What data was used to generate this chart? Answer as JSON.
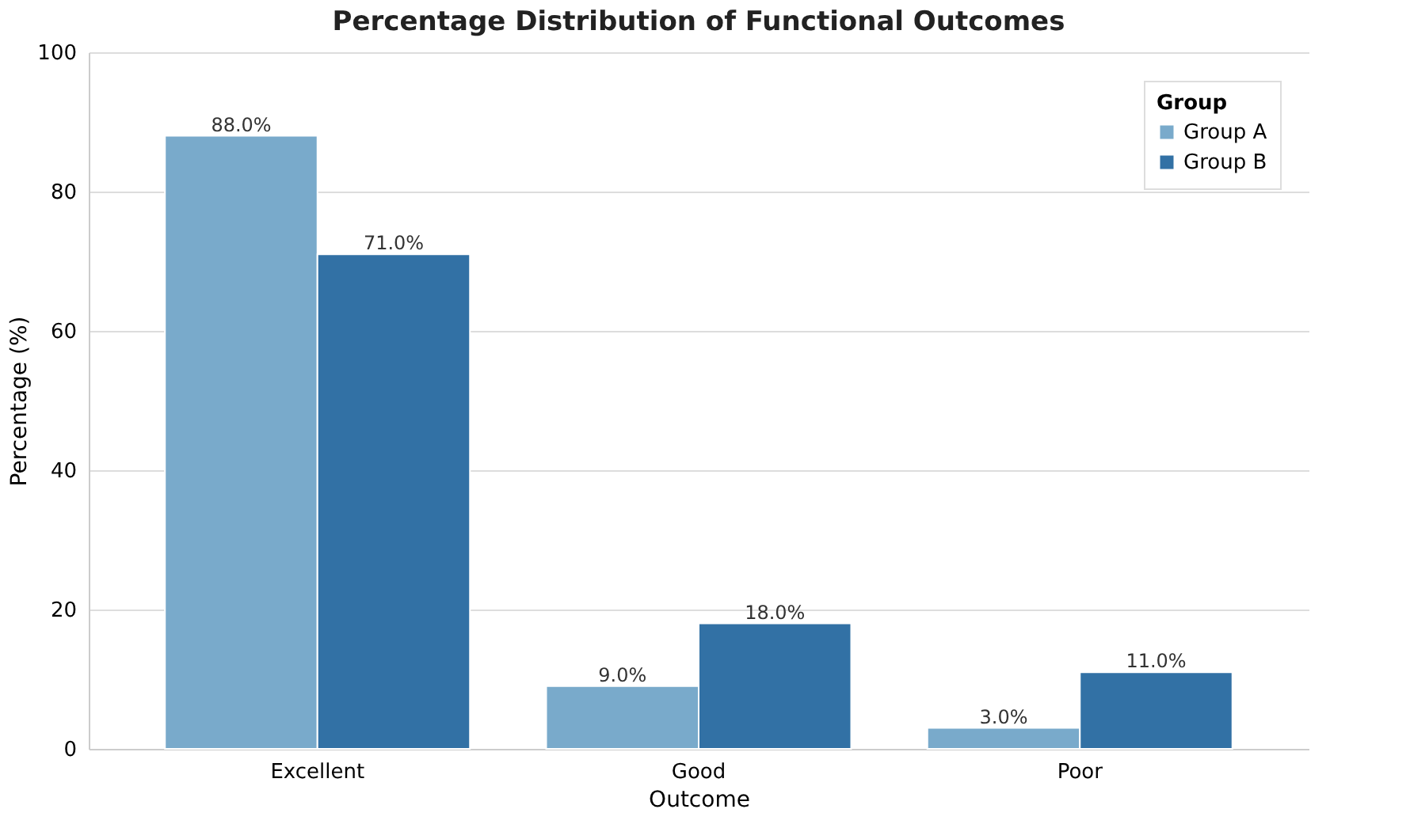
{
  "chart_data": {
    "type": "bar",
    "title": "Percentage Distribution of Functional Outcomes",
    "xlabel": "Outcome",
    "ylabel": "Percentage (%)",
    "legend_title": "Group",
    "categories": [
      "Excellent",
      "Good",
      "Poor"
    ],
    "series": [
      {
        "name": "Group A",
        "color": "#79aacb",
        "values": [
          88,
          9,
          3
        ],
        "value_labels": [
          "88.0%",
          "9.0%",
          "3.0%"
        ]
      },
      {
        "name": "Group B",
        "color": "#3271a5",
        "values": [
          71,
          18,
          11
        ],
        "value_labels": [
          "71.0%",
          "18.0%",
          "11.0%"
        ]
      }
    ],
    "ylim": [
      0,
      100
    ],
    "yticks": [
      0,
      20,
      40,
      60,
      80,
      100
    ],
    "grid": "y",
    "legend": "top right"
  }
}
